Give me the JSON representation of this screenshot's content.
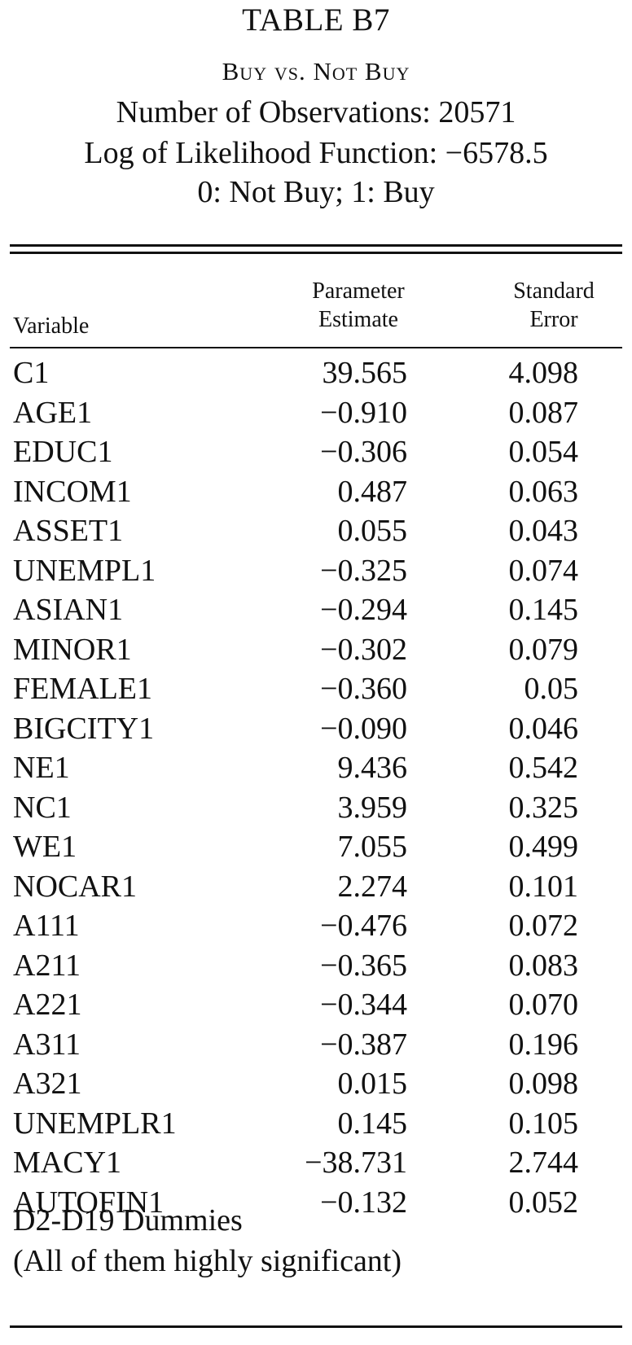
{
  "header": {
    "table_title": "TABLE B7",
    "subtitle": "Buy vs. Not Buy",
    "observations": "Number of Observations: 20571",
    "log_likelihood": "Log of Likelihood Function: −6578.5",
    "coding": "0: Not Buy; 1: Buy"
  },
  "columns": {
    "variable": "Variable",
    "estimate_line1": "Parameter",
    "estimate_line2": "Estimate",
    "stderr_line1": "Standard",
    "stderr_line2": "Error"
  },
  "rows": [
    {
      "variable": "C1",
      "estimate": "39.565",
      "stderr": "4.098"
    },
    {
      "variable": "AGE1",
      "estimate": "−0.910",
      "stderr": "0.087"
    },
    {
      "variable": "EDUC1",
      "estimate": "−0.306",
      "stderr": "0.054"
    },
    {
      "variable": "INCOM1",
      "estimate": "0.487",
      "stderr": "0.063"
    },
    {
      "variable": "ASSET1",
      "estimate": "0.055",
      "stderr": "0.043"
    },
    {
      "variable": "UNEMPL1",
      "estimate": "−0.325",
      "stderr": "0.074"
    },
    {
      "variable": "ASIAN1",
      "estimate": "−0.294",
      "stderr": "0.145"
    },
    {
      "variable": "MINOR1",
      "estimate": "−0.302",
      "stderr": "0.079"
    },
    {
      "variable": "FEMALE1",
      "estimate": "−0.360",
      "stderr": "0.05"
    },
    {
      "variable": "BIGCITY1",
      "estimate": "−0.090",
      "stderr": "0.046"
    },
    {
      "variable": "NE1",
      "estimate": "9.436",
      "stderr": "0.542"
    },
    {
      "variable": "NC1",
      "estimate": "3.959",
      "stderr": "0.325"
    },
    {
      "variable": "WE1",
      "estimate": "7.055",
      "stderr": "0.499"
    },
    {
      "variable": "NOCAR1",
      "estimate": "2.274",
      "stderr": "0.101"
    },
    {
      "variable": "A111",
      "estimate": "−0.476",
      "stderr": "0.072"
    },
    {
      "variable": "A211",
      "estimate": "−0.365",
      "stderr": "0.083"
    },
    {
      "variable": "A221",
      "estimate": "−0.344",
      "stderr": "0.070"
    },
    {
      "variable": "A311",
      "estimate": "−0.387",
      "stderr": "0.196"
    },
    {
      "variable": "A321",
      "estimate": "0.015",
      "stderr": "0.098"
    },
    {
      "variable": "UNEMPLR1",
      "estimate": "0.145",
      "stderr": "0.105"
    },
    {
      "variable": "MACY1",
      "estimate": "−38.731",
      "stderr": "2.744"
    },
    {
      "variable": "AUTOFIN1",
      "estimate": "−0.132",
      "stderr": "0.052"
    }
  ],
  "notes": {
    "dummies": "D2-D19 Dummies",
    "significance": "(All of them highly significant)"
  }
}
